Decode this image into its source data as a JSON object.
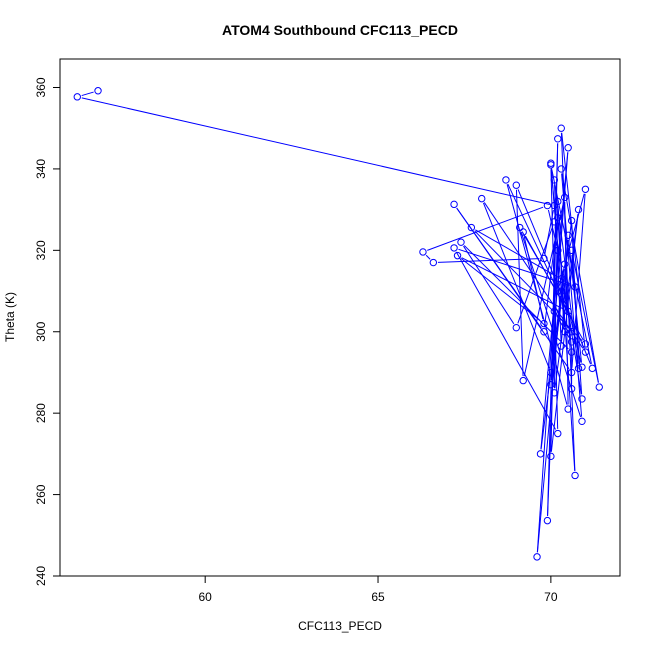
{
  "chart_data": {
    "type": "line",
    "title": "ATOM4 Southbound CFC113_PECD",
    "xlabel": "CFC113_PECD",
    "ylabel": "Theta (K)",
    "xlim": [
      55.8,
      72.0
    ],
    "ylim": [
      240,
      367
    ],
    "xticks": [
      60,
      65,
      70
    ],
    "yticks": [
      240,
      260,
      280,
      300,
      320,
      340,
      360
    ],
    "grid": false,
    "series_color": "#0000ff",
    "marker": "open-circle",
    "series": [
      {
        "points": [
          [
            56.9,
            359.2
          ],
          [
            56.3,
            357.7
          ],
          [
            70.1,
            331.0
          ],
          [
            69.8,
            318.0
          ],
          [
            66.6,
            317.0
          ],
          [
            66.3,
            319.6
          ],
          [
            69.9,
            331.0
          ],
          [
            70.2,
            320.0
          ],
          [
            70.0,
            341.4
          ],
          [
            70.4,
            300.0
          ],
          [
            70.2,
            332.0
          ],
          [
            70.1,
            285.0
          ],
          [
            70.8,
            330.0
          ],
          [
            70.0,
            269.4
          ],
          [
            70.2,
            347.4
          ],
          [
            69.9,
            253.6
          ],
          [
            70.2,
            320.0
          ],
          [
            69.6,
            244.7
          ],
          [
            70.3,
            310.0
          ],
          [
            69.7,
            270.0
          ],
          [
            70.5,
            345.2
          ],
          [
            70.0,
            290.0
          ],
          [
            68.0,
            332.7
          ],
          [
            71.0,
            295.0
          ],
          [
            70.3,
            350.0
          ],
          [
            70.7,
            264.7
          ],
          [
            70.2,
            328.0
          ],
          [
            69.8,
            300.0
          ],
          [
            67.2,
            331.3
          ],
          [
            70.6,
            290.0
          ],
          [
            71.0,
            335.0
          ],
          [
            70.2,
            310.0
          ],
          [
            68.7,
            337.3
          ],
          [
            70.5,
            281.0
          ],
          [
            70.4,
            333.0
          ],
          [
            69.2,
            288.0
          ],
          [
            69.0,
            336.0
          ],
          [
            71.2,
            291.0
          ],
          [
            70.0,
            341.0
          ],
          [
            70.2,
            275.0
          ],
          [
            67.2,
            320.6
          ],
          [
            70.7,
            311.0
          ],
          [
            67.7,
            325.6
          ],
          [
            71.0,
            297.0
          ],
          [
            69.2,
            324.5
          ],
          [
            69.8,
            302.0
          ],
          [
            67.3,
            318.7
          ],
          [
            70.5,
            305.0
          ],
          [
            69.1,
            325.6
          ],
          [
            70.9,
            278.0
          ],
          [
            70.3,
            340.0
          ],
          [
            71.4,
            286.4
          ],
          [
            70.6,
            320.0
          ],
          [
            70.9,
            283.5
          ],
          [
            70.1,
            327.0
          ],
          [
            69.0,
            301.0
          ],
          [
            67.4,
            322.0
          ],
          [
            70.6,
            295.0
          ],
          [
            70.4,
            316.6
          ],
          [
            70.0,
            287.0
          ],
          [
            70.6,
            327.3
          ],
          [
            70.8,
            291.0
          ],
          [
            70.1,
            337.3
          ],
          [
            70.3,
            296.5
          ],
          [
            70.5,
            323.7
          ],
          [
            70.9,
            291.3
          ],
          [
            70.3,
            313.0
          ],
          [
            70.6,
            300.0
          ],
          [
            70.1,
            305.0
          ],
          [
            70.6,
            297.5
          ],
          [
            70.6,
            286.0
          ]
        ]
      }
    ]
  }
}
